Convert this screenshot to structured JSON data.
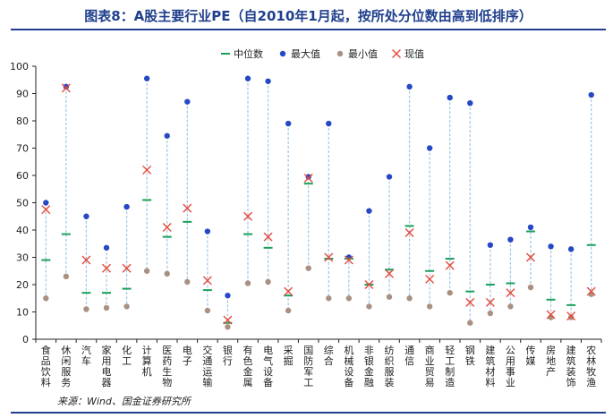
{
  "header": {
    "title": "图表8：A股主要行业PE（自2010年1月起，按所处分位数由高到低排序）"
  },
  "footer": {
    "source": "来源：Wind、国金证券研究所"
  },
  "colors": {
    "median": "#1aa05a",
    "max": "#2448c6",
    "min": "#a89183",
    "current": "#e64a3c",
    "range_line": "#9cc6e4",
    "title": "#1f3f8c"
  },
  "chart_data": {
    "type": "scatter",
    "ylim": [
      0,
      100
    ],
    "yticks": [
      0,
      10,
      20,
      30,
      40,
      50,
      60,
      70,
      80,
      90,
      100
    ],
    "grid": false,
    "legend_position": "top-right",
    "categories": [
      "食品饮料",
      "休闲服务",
      "汽车",
      "家用电器",
      "化工",
      "计算机",
      "医药生物",
      "电子",
      "交通运输",
      "银行",
      "有色金属",
      "电气设备",
      "采掘",
      "国防军工",
      "综合",
      "机械设备",
      "非银金融",
      "纺织服装",
      "通信",
      "商业贸易",
      "轻工制造",
      "钢铁",
      "建筑材料",
      "公用事业",
      "传媒",
      "房地产",
      "建筑装饰",
      "农林牧渔"
    ],
    "series": [
      {
        "name": "中位数",
        "marker": "dash",
        "values": [
          29,
          38.5,
          17,
          17,
          18.5,
          51,
          37.5,
          43,
          18,
          6,
          38.5,
          33.5,
          16,
          57,
          29.5,
          29.5,
          20,
          25.5,
          41.5,
          25,
          29.5,
          17.5,
          20,
          20.5,
          39.5,
          14.5,
          12.5,
          34.5
        ]
      },
      {
        "name": "最大值",
        "marker": "dot",
        "values": [
          50,
          92.5,
          45,
          33.5,
          48.5,
          95.5,
          74.5,
          87,
          39.5,
          16,
          95.5,
          94.5,
          79,
          59.5,
          79,
          30,
          47,
          59.5,
          92.5,
          70,
          88.5,
          86.5,
          34.5,
          36.5,
          41,
          34,
          33,
          89.5
        ]
      },
      {
        "name": "最小值",
        "marker": "dot",
        "values": [
          15,
          23,
          11,
          11.5,
          12,
          25,
          24,
          21,
          10.5,
          4.5,
          20.5,
          21,
          10.5,
          26,
          15,
          15,
          12,
          15.5,
          15,
          12,
          17,
          6,
          9.5,
          12,
          19,
          8,
          8,
          16.5
        ]
      },
      {
        "name": "现值",
        "marker": "x",
        "values": [
          47.5,
          92,
          29,
          26,
          26,
          62,
          41,
          48,
          21.5,
          7,
          45,
          37.5,
          17.5,
          59,
          30,
          29,
          20,
          24,
          39,
          22,
          27,
          13.5,
          13.5,
          17,
          30,
          9,
          8.5,
          17.5
        ]
      }
    ]
  }
}
